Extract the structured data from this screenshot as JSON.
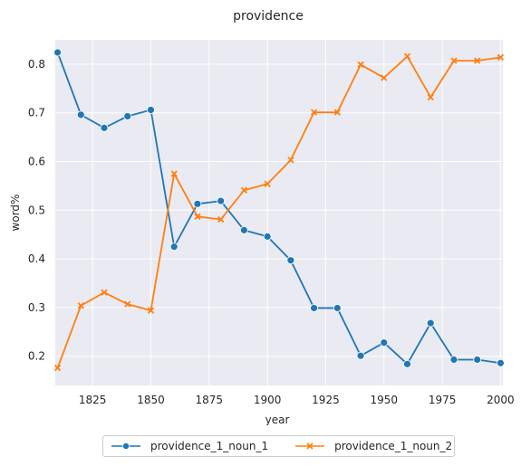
{
  "chart_data": {
    "type": "line",
    "title": "providence",
    "xlabel": "year",
    "ylabel": "word%",
    "xlim": [
      1809,
      2001
    ],
    "ylim": [
      0.14,
      0.85
    ],
    "x_ticks": [
      1825,
      1850,
      1875,
      1900,
      1925,
      1950,
      1975,
      2000
    ],
    "y_ticks": [
      0.2,
      0.3,
      0.4,
      0.5,
      0.6,
      0.7,
      0.8
    ],
    "grid": true,
    "legend_position": "bottom-center",
    "x": [
      1810,
      1820,
      1830,
      1840,
      1850,
      1860,
      1870,
      1880,
      1890,
      1900,
      1910,
      1920,
      1930,
      1940,
      1950,
      1960,
      1970,
      1980,
      1990,
      2000
    ],
    "series": [
      {
        "name": "providence_1_noun_1",
        "color": "#1f77b4",
        "marker": "circle",
        "values": [
          0.824,
          0.696,
          0.669,
          0.693,
          0.706,
          0.425,
          0.513,
          0.519,
          0.459,
          0.446,
          0.397,
          0.299,
          0.299,
          0.201,
          0.228,
          0.184,
          0.268,
          0.193,
          0.193,
          0.186
        ]
      },
      {
        "name": "providence_1_noun_2",
        "color": "#ff7f0e",
        "marker": "x",
        "values": [
          0.176,
          0.304,
          0.331,
          0.307,
          0.294,
          0.575,
          0.487,
          0.481,
          0.541,
          0.554,
          0.603,
          0.701,
          0.701,
          0.799,
          0.772,
          0.816,
          0.732,
          0.807,
          0.807,
          0.814
        ]
      }
    ]
  }
}
